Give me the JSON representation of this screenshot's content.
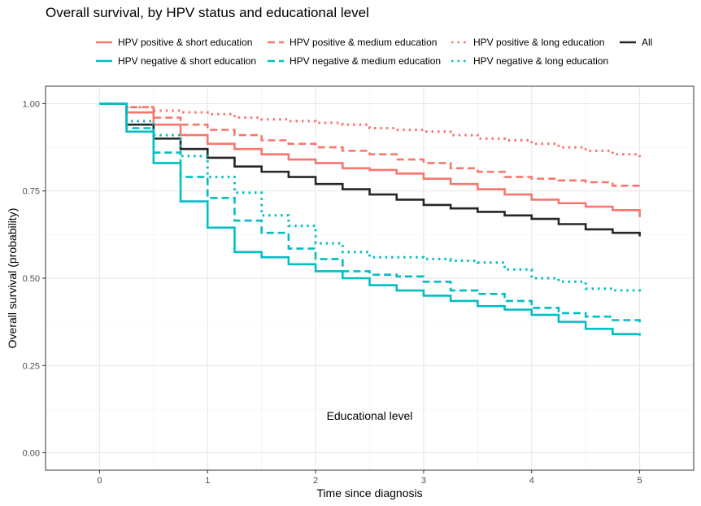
{
  "chart_data": {
    "type": "line",
    "title": "Overall survival, by HPV status and educational level",
    "xlabel": "Time since diagnosis",
    "ylabel": "Overall survival (probability)",
    "xlim": [
      -0.5,
      5.5
    ],
    "ylim": [
      -0.05,
      1.05
    ],
    "x_ticks": [
      0,
      1,
      2,
      3,
      4,
      5
    ],
    "y_ticks": [
      0.0,
      0.25,
      0.5,
      0.75,
      1.0
    ],
    "x_tick_labels": [
      "0",
      "1",
      "2",
      "3",
      "4",
      "5"
    ],
    "y_tick_labels": [
      "0.00",
      "0.25",
      "0.50",
      "0.75",
      "1.00"
    ],
    "grid": true,
    "legend_position": "top",
    "annotation": "Educational level",
    "series": [
      {
        "name": "HPV positive & short education",
        "color": "#F8766D",
        "linetype": "solid",
        "x": [
          0,
          0.25,
          0.5,
          0.75,
          1.0,
          1.25,
          1.5,
          1.75,
          2.0,
          2.25,
          2.5,
          2.75,
          3.0,
          3.25,
          3.5,
          3.75,
          4.0,
          4.25,
          4.5,
          4.75,
          5.0
        ],
        "y": [
          1.0,
          0.975,
          0.94,
          0.91,
          0.885,
          0.87,
          0.855,
          0.84,
          0.83,
          0.815,
          0.81,
          0.8,
          0.785,
          0.77,
          0.755,
          0.74,
          0.725,
          0.715,
          0.705,
          0.695,
          0.675
        ]
      },
      {
        "name": "HPV positive & medium education",
        "color": "#F8766D",
        "linetype": "dashed",
        "x": [
          0,
          0.25,
          0.5,
          0.75,
          1.0,
          1.25,
          1.5,
          1.75,
          2.0,
          2.25,
          2.5,
          2.75,
          3.0,
          3.25,
          3.5,
          3.75,
          4.0,
          4.25,
          4.5,
          4.75,
          5.0
        ],
        "y": [
          1.0,
          0.99,
          0.96,
          0.94,
          0.925,
          0.91,
          0.895,
          0.885,
          0.875,
          0.865,
          0.855,
          0.84,
          0.83,
          0.815,
          0.805,
          0.79,
          0.785,
          0.78,
          0.775,
          0.765,
          0.76
        ]
      },
      {
        "name": "HPV positive & long education",
        "color": "#F8766D",
        "linetype": "dotted",
        "x": [
          0,
          0.25,
          0.5,
          0.75,
          1.0,
          1.25,
          1.5,
          1.75,
          2.0,
          2.25,
          2.5,
          2.75,
          3.0,
          3.25,
          3.5,
          3.75,
          4.0,
          4.25,
          4.5,
          4.75,
          5.0
        ],
        "y": [
          1.0,
          0.99,
          0.98,
          0.975,
          0.97,
          0.96,
          0.955,
          0.95,
          0.945,
          0.94,
          0.93,
          0.925,
          0.92,
          0.91,
          0.9,
          0.895,
          0.885,
          0.875,
          0.865,
          0.855,
          0.845
        ]
      },
      {
        "name": "All",
        "color": "#262626",
        "linetype": "solid",
        "x": [
          0,
          0.25,
          0.5,
          0.75,
          1.0,
          1.25,
          1.5,
          1.75,
          2.0,
          2.25,
          2.5,
          2.75,
          3.0,
          3.25,
          3.5,
          3.75,
          4.0,
          4.25,
          4.5,
          4.75,
          5.0
        ],
        "y": [
          1.0,
          0.94,
          0.9,
          0.87,
          0.845,
          0.82,
          0.805,
          0.79,
          0.77,
          0.755,
          0.74,
          0.725,
          0.71,
          0.7,
          0.69,
          0.68,
          0.67,
          0.655,
          0.64,
          0.63,
          0.62
        ]
      },
      {
        "name": "HPV negative & short education",
        "color": "#00BFC4",
        "linetype": "solid",
        "x": [
          0,
          0.25,
          0.5,
          0.75,
          1.0,
          1.25,
          1.5,
          1.75,
          2.0,
          2.25,
          2.5,
          2.75,
          3.0,
          3.25,
          3.5,
          3.75,
          4.0,
          4.25,
          4.5,
          4.75,
          5.0
        ],
        "y": [
          1.0,
          0.92,
          0.83,
          0.72,
          0.645,
          0.575,
          0.56,
          0.54,
          0.52,
          0.5,
          0.48,
          0.465,
          0.45,
          0.435,
          0.42,
          0.41,
          0.395,
          0.375,
          0.355,
          0.34,
          0.335
        ]
      },
      {
        "name": "HPV negative & medium education",
        "color": "#00BFC4",
        "linetype": "dashed",
        "x": [
          0,
          0.25,
          0.5,
          0.75,
          1.0,
          1.25,
          1.5,
          1.75,
          2.0,
          2.25,
          2.5,
          2.75,
          3.0,
          3.25,
          3.5,
          3.75,
          4.0,
          4.25,
          4.5,
          4.75,
          5.0
        ],
        "y": [
          1.0,
          0.93,
          0.86,
          0.79,
          0.73,
          0.665,
          0.63,
          0.585,
          0.555,
          0.52,
          0.51,
          0.505,
          0.49,
          0.465,
          0.455,
          0.435,
          0.415,
          0.4,
          0.39,
          0.38,
          0.37
        ]
      },
      {
        "name": "HPV negative & long education",
        "color": "#00BFC4",
        "linetype": "dotted",
        "x": [
          0,
          0.25,
          0.5,
          0.75,
          1.0,
          1.25,
          1.5,
          1.75,
          2.0,
          2.25,
          2.5,
          2.75,
          3.0,
          3.25,
          3.5,
          3.75,
          4.0,
          4.25,
          4.5,
          4.75,
          5.0
        ],
        "y": [
          1.0,
          0.95,
          0.91,
          0.85,
          0.79,
          0.745,
          0.68,
          0.65,
          0.6,
          0.575,
          0.56,
          0.56,
          0.555,
          0.55,
          0.545,
          0.525,
          0.5,
          0.49,
          0.47,
          0.465,
          0.46
        ]
      }
    ]
  }
}
